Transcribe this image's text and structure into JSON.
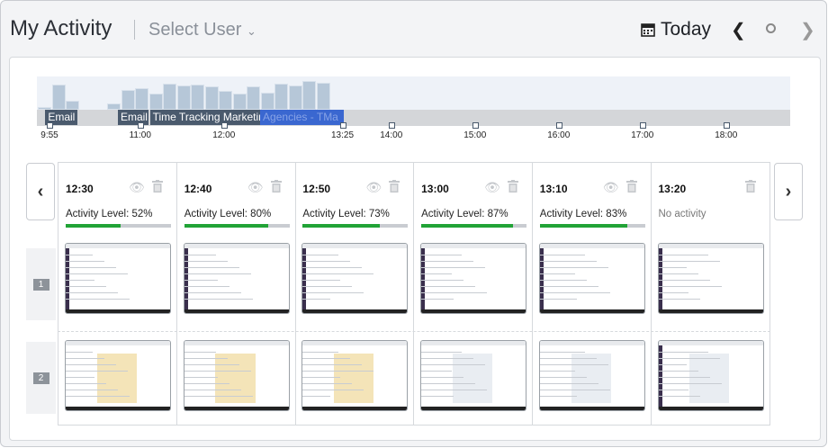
{
  "header": {
    "title": "My Activity",
    "user_select": "Select User",
    "date": "Today",
    "calendar_icon": "calendar-icon"
  },
  "timeline": {
    "ticks": [
      {
        "label": "9:55",
        "min": 595
      },
      {
        "label": "11:00",
        "min": 660
      },
      {
        "label": "12:00",
        "min": 720
      },
      {
        "label": "13:25",
        "min": 805
      },
      {
        "label": "14:00",
        "min": 840
      },
      {
        "label": "15:00",
        "min": 900
      },
      {
        "label": "16:00",
        "min": 960
      },
      {
        "label": "17:00",
        "min": 1020
      },
      {
        "label": "18:00",
        "min": 1080
      }
    ],
    "activity_bars": [
      8,
      76,
      27,
      19,
      59,
      65,
      49,
      78,
      73,
      76,
      70,
      57,
      49,
      70,
      51,
      78,
      73,
      86,
      81
    ],
    "apps": [
      {
        "label": "Email",
        "start": 592,
        "end": 615,
        "color": "#4a5a6d"
      },
      {
        "label": "Email",
        "start": 644,
        "end": 666,
        "color": "#4a5a6d"
      },
      {
        "label": "Time Tracking Marketing",
        "start": 667,
        "end": 746,
        "color": "#4a5a6d"
      },
      {
        "label": "Agencies - TMa",
        "start": 746,
        "end": 806,
        "color": "#2a5bd0"
      }
    ]
  },
  "slots": [
    {
      "time": "12:30",
      "activity": "Activity Level: 52%",
      "level": 52
    },
    {
      "time": "12:40",
      "activity": "Activity Level: 80%",
      "level": 80
    },
    {
      "time": "12:50",
      "activity": "Activity Level: 73%",
      "level": 73
    },
    {
      "time": "13:00",
      "activity": "Activity Level: 87%",
      "level": 87
    },
    {
      "time": "13:10",
      "activity": "Activity Level: 83%",
      "level": 83
    },
    {
      "time": "13:20",
      "activity": "No activity",
      "level": null
    }
  ],
  "monitors": [
    "1",
    "2"
  ]
}
